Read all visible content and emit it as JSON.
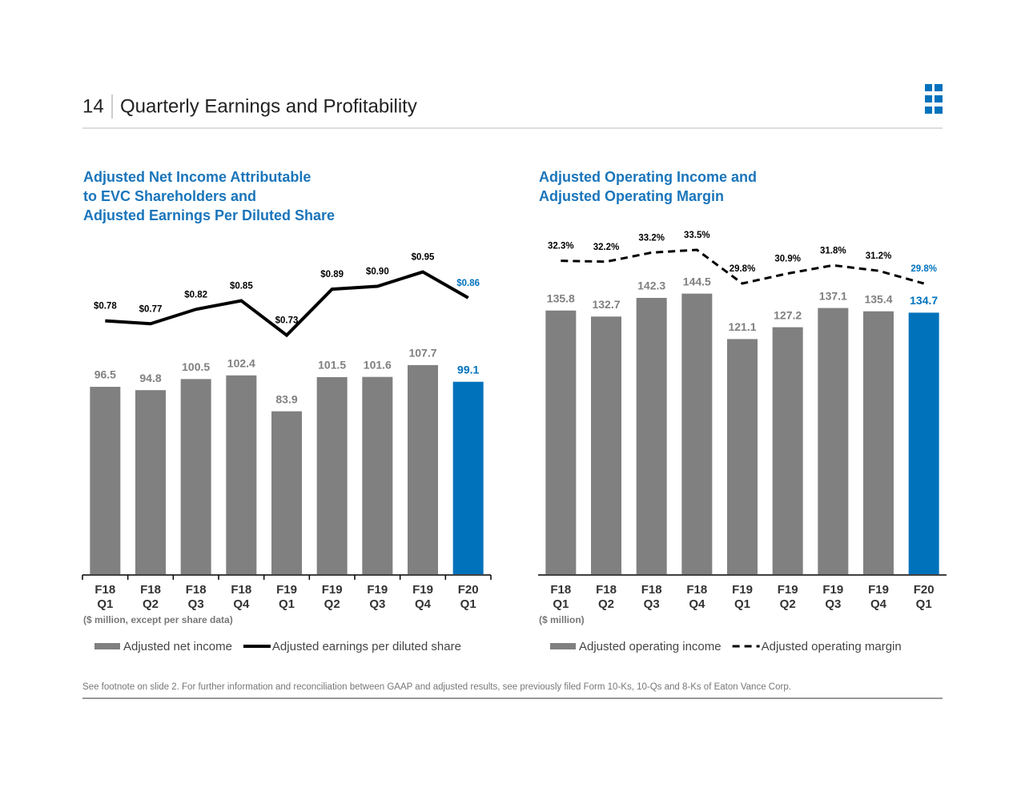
{
  "header": {
    "page_number": "14",
    "title": "Quarterly Earnings and Profitability"
  },
  "footnote": "See footnote on slide 2.  For further information and reconciliation between GAAP and adjusted results, see previously filed Form 10-Ks, 10-Qs and 8-Ks of Eaton Vance Corp.",
  "chart_data": [
    {
      "type": "bar_line",
      "title": [
        "Adjusted Net Income Attributable",
        "to EVC Shareholders and",
        "Adjusted Earnings Per Diluted Share"
      ],
      "units_note": "($ million, except per share data)",
      "categories": [
        [
          "F18",
          "Q1"
        ],
        [
          "F18",
          "Q2"
        ],
        [
          "F18",
          "Q3"
        ],
        [
          "F18",
          "Q4"
        ],
        [
          "F19",
          "Q1"
        ],
        [
          "F19",
          "Q2"
        ],
        [
          "F19",
          "Q3"
        ],
        [
          "F19",
          "Q4"
        ],
        [
          "F20",
          "Q1"
        ]
      ],
      "ylim": [
        0,
        172
      ],
      "y2lim": [
        -0.1,
        1.06
      ],
      "category_ticks": true,
      "series": [
        {
          "name": "Adjusted net income",
          "kind": "bar",
          "color": "#808080",
          "colors": [
            "#808080",
            "#808080",
            "#808080",
            "#808080",
            "#808080",
            "#808080",
            "#808080",
            "#808080",
            "#0072bc"
          ],
          "values": [
            96.5,
            94.8,
            100.5,
            102.4,
            83.9,
            101.5,
            101.6,
            107.7,
            99.1
          ]
        },
        {
          "name": "Adjusted earnings per diluted share",
          "kind": "line",
          "axis": "y2",
          "color": "#000000",
          "dash": false,
          "label_colors": [
            "#000000",
            "#000000",
            "#000000",
            "#000000",
            "#000000",
            "#000000",
            "#000000",
            "#000000",
            "#0072bc"
          ],
          "values": [
            0.78,
            0.77,
            0.82,
            0.85,
            0.73,
            0.89,
            0.9,
            0.95,
            0.86
          ],
          "value_labels": [
            "$0.78",
            "$0.77",
            "$0.82",
            "$0.85",
            "$0.73",
            "$0.89",
            "$0.90",
            "$0.95",
            "$0.86"
          ]
        }
      ]
    },
    {
      "type": "bar_line",
      "title": [
        "Adjusted Operating Income and",
        "Adjusted Operating Margin"
      ],
      "units_note": "($ million)",
      "categories": [
        [
          "F18",
          "Q1"
        ],
        [
          "F18",
          "Q2"
        ],
        [
          "F18",
          "Q3"
        ],
        [
          "F18",
          "Q4"
        ],
        [
          "F19",
          "Q1"
        ],
        [
          "F19",
          "Q2"
        ],
        [
          "F19",
          "Q3"
        ],
        [
          "F19",
          "Q4"
        ],
        [
          "F20",
          "Q1"
        ]
      ],
      "ylim": [
        0,
        172
      ],
      "y2lim": [
        -2.2,
        34.56
      ],
      "category_ticks": false,
      "series": [
        {
          "name": "Adjusted operating income",
          "kind": "bar",
          "color": "#808080",
          "colors": [
            "#808080",
            "#808080",
            "#808080",
            "#808080",
            "#808080",
            "#808080",
            "#808080",
            "#808080",
            "#0072bc"
          ],
          "values": [
            135.8,
            132.7,
            142.3,
            144.5,
            121.1,
            127.2,
            137.1,
            135.4,
            134.7
          ]
        },
        {
          "name": "Adjusted operating margin",
          "kind": "line",
          "axis": "y2",
          "color": "#000000",
          "dash": true,
          "label_colors": [
            "#000000",
            "#000000",
            "#000000",
            "#000000",
            "#000000",
            "#000000",
            "#000000",
            "#000000",
            "#0072bc"
          ],
          "values": [
            32.3,
            32.2,
            33.2,
            33.5,
            29.8,
            30.9,
            31.8,
            31.2,
            29.8
          ],
          "value_labels": [
            "32.3%",
            "32.2%",
            "33.2%",
            "33.5%",
            "29.8%",
            "30.9%",
            "31.8%",
            "31.2%",
            "29.8%"
          ]
        }
      ]
    }
  ]
}
